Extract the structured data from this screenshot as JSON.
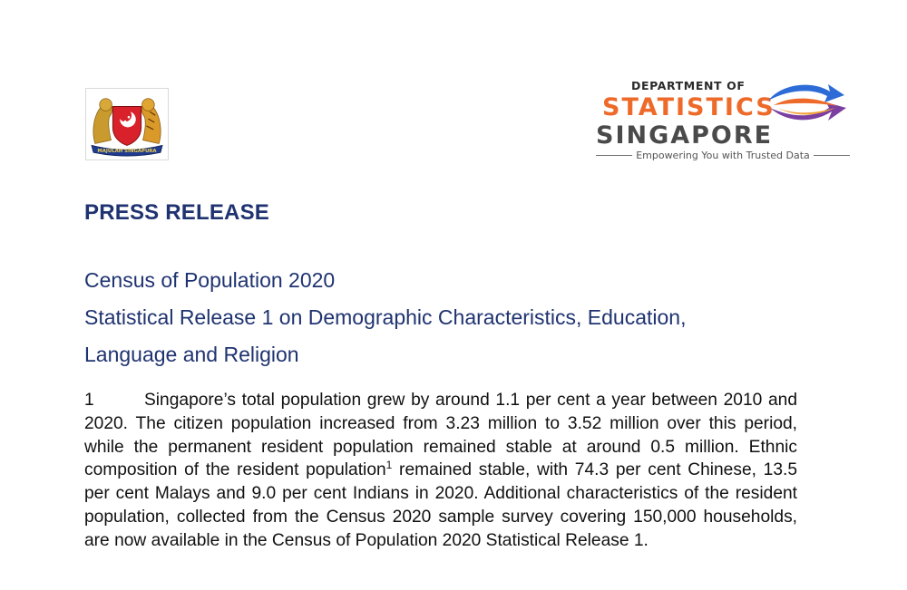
{
  "logos": {
    "crest_motto": "MAJULAH SINGAPURA",
    "dos_department": "DEPARTMENT OF",
    "dos_statistics": "STATISTICS",
    "dos_singapore": "SINGAPORE",
    "dos_tagline": "Empowering You with Trusted Data",
    "colors": {
      "orange": "#ee6a2a",
      "grey": "#4a4a4a",
      "blue": "#2d6bd6",
      "purple": "#7b3fa0"
    }
  },
  "heading": "PRESS RELEASE",
  "title": {
    "line1": "Census of Population 2020",
    "line2": "Statistical Release 1 on Demographic Characteristics, Education,",
    "line3": "Language and Religion"
  },
  "paragraph": {
    "number": "1",
    "text_before_footnote": "Singapore’s total population grew by around 1.1 per cent a year between 2010 and 2020. The citizen population increased from 3.23 million to 3.52 million over this period, while the permanent resident population remained stable at around 0.5 million. Ethnic composition of the resident population",
    "footnote_ref": "1",
    "text_after_footnote": " remained stable, with 74.3 per cent Chinese, 13.5 per cent Malays and 9.0 per cent Indians in 2020. Additional characteristics of the resident population, collected from the Census 2020 sample survey covering 150,000 households, are now available in the Census of Population 2020 Statistical Release 1."
  },
  "colors": {
    "heading_blue": "#1f3370"
  }
}
